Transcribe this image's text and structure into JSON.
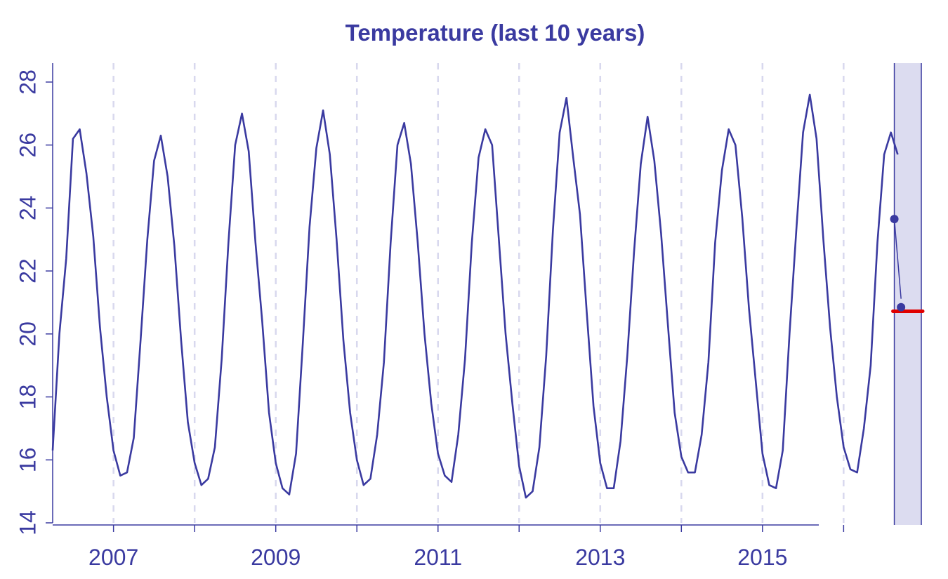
{
  "chart_data": {
    "type": "line",
    "title": "Temperature (last 10 years)",
    "xlabel": "",
    "ylabel": "",
    "xlim": [
      2006.25,
      2016.75
    ],
    "ylim": [
      14,
      28.6
    ],
    "x_ticks": [
      2007,
      2008,
      2009,
      2010,
      2011,
      2012,
      2013,
      2014,
      2015,
      2016
    ],
    "x_tick_labels": [
      "2007",
      "",
      "2009",
      "",
      "2011",
      "",
      "2013",
      "",
      "2015",
      ""
    ],
    "y_ticks": [
      14,
      16,
      18,
      20,
      22,
      24,
      26,
      28
    ],
    "y_tick_labels": [
      "14",
      "16",
      "18",
      "20",
      "22",
      "24",
      "26",
      "28"
    ],
    "grid": "vertical dashed at year boundaries",
    "series": [
      {
        "x_start": 2006.25,
        "x_step": 0.0833333,
        "values": [
          16.3,
          20.0,
          22.4,
          26.2,
          26.5,
          25.1,
          23.1,
          20.2,
          18.0,
          16.3,
          15.5,
          15.6,
          16.7,
          19.8,
          23.0,
          25.5,
          26.3,
          25.0,
          22.8,
          19.8,
          17.2,
          15.9,
          15.2,
          15.4,
          16.4,
          19.2,
          22.9,
          26.0,
          27.0,
          25.8,
          22.9,
          20.4,
          17.5,
          15.9,
          15.1,
          14.9,
          16.2,
          19.7,
          23.4,
          25.9,
          27.1,
          25.7,
          23.0,
          19.8,
          17.5,
          16.0,
          15.2,
          15.4,
          16.8,
          19.1,
          22.9,
          26.0,
          26.7,
          25.4,
          22.9,
          20.0,
          17.8,
          16.2,
          15.5,
          15.3,
          16.8,
          19.2,
          22.9,
          25.6,
          26.5,
          26.0,
          23.0,
          20.0,
          17.8,
          15.8,
          14.8,
          15.0,
          16.4,
          19.3,
          23.3,
          26.4,
          27.5,
          25.6,
          23.8,
          20.7,
          17.7,
          15.9,
          15.1,
          15.1,
          16.6,
          19.3,
          22.6,
          25.4,
          26.9,
          25.5,
          23.2,
          20.3,
          17.5,
          16.1,
          15.6,
          15.6,
          16.8,
          19.1,
          22.9,
          25.2,
          26.5,
          26.0,
          23.7,
          20.8,
          18.5,
          16.2,
          15.2,
          15.1,
          16.3,
          20.0,
          23.3,
          26.4,
          27.6,
          26.2,
          23.0,
          20.2,
          18.0,
          16.4,
          15.7,
          15.6,
          17.0,
          19.0,
          22.9,
          25.7,
          26.4,
          25.7
        ]
      }
    ],
    "forecast_points": [
      {
        "x": 2016.625,
        "y": 23.65
      },
      {
        "x": 2016.708,
        "y": 20.85
      }
    ],
    "forecast_mean": {
      "x": [
        2016.625,
        2016.958
      ],
      "y": [
        20.72,
        20.72
      ]
    },
    "forecast_band": {
      "x": [
        2016.625,
        2016.958
      ]
    },
    "colors": {
      "axis": "#3a3aa0",
      "line": "#3a3aa0",
      "grid": "#d8d8ee",
      "band": "#dcdcf0",
      "forecast_mean": "#e00000"
    }
  }
}
